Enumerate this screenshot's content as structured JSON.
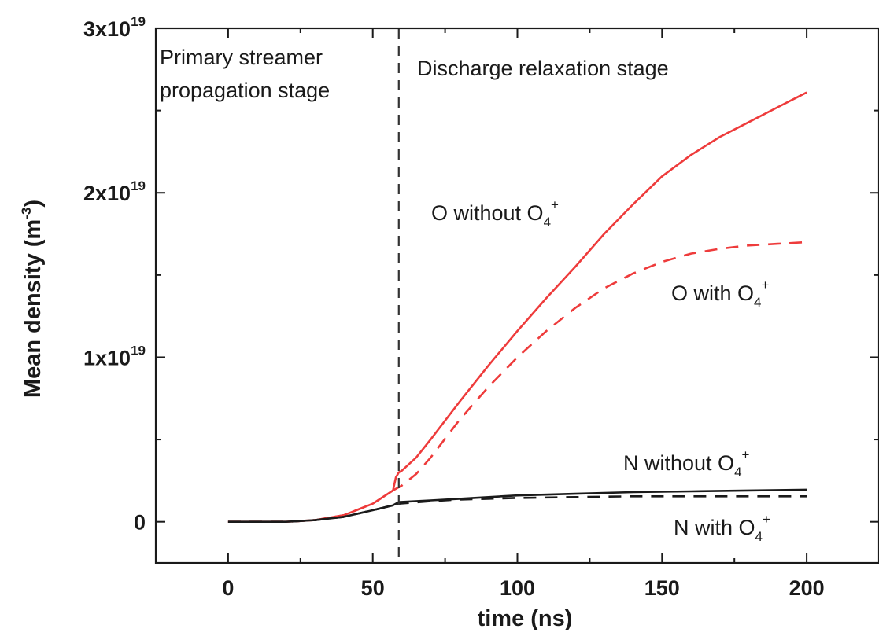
{
  "chart_data": {
    "type": "line",
    "xlabel": "time (ns)",
    "ylabel": "Mean density (m",
    "ylabel_exponent": "-3",
    "ylabel_close": ")",
    "xlim": [
      -25,
      225
    ],
    "ylim": [
      -2.5e+18,
      3e+19
    ],
    "x_ticks": [
      0,
      50,
      100,
      150,
      200
    ],
    "x_tick_labels": [
      "0",
      "50",
      "100",
      "150",
      "200"
    ],
    "y_ticks": [
      0,
      1e+19,
      2e+19,
      3e+19
    ],
    "y_tick_labels": [
      {
        "base": "0",
        "exp": ""
      },
      {
        "base": "1x10",
        "exp": "19"
      },
      {
        "base": "2x10",
        "exp": "19"
      },
      {
        "base": "3x10",
        "exp": "19"
      }
    ],
    "divider_x": 59,
    "stage_labels": [
      {
        "lines": [
          "Primary streamer",
          "propagation stage"
        ]
      },
      {
        "lines": [
          "Discharge relaxation stage"
        ]
      }
    ],
    "series": [
      {
        "name": "O without O4+",
        "label_parts": [
          "O without O",
          "4",
          "+"
        ],
        "color": "#ee3b3b",
        "dash": "solid",
        "points": [
          [
            0,
            0
          ],
          [
            10,
            0
          ],
          [
            20,
            0
          ],
          [
            30,
            1e+17
          ],
          [
            40,
            4e+17
          ],
          [
            50,
            1.1e+18
          ],
          [
            57,
            1.9e+18
          ],
          [
            58,
            2.7e+18
          ],
          [
            59,
            3e+18
          ],
          [
            60,
            3.1e+18
          ],
          [
            65,
            3.9e+18
          ],
          [
            70,
            5e+18
          ],
          [
            80,
            7.3e+18
          ],
          [
            90,
            9.5e+18
          ],
          [
            100,
            1.16e+19
          ],
          [
            110,
            1.36e+19
          ],
          [
            120,
            1.55e+19
          ],
          [
            130,
            1.75e+19
          ],
          [
            140,
            1.93e+19
          ],
          [
            150,
            2.1e+19
          ],
          [
            160,
            2.23e+19
          ],
          [
            170,
            2.34e+19
          ],
          [
            180,
            2.43e+19
          ],
          [
            190,
            2.52e+19
          ],
          [
            200,
            2.61e+19
          ]
        ]
      },
      {
        "name": "O with O4+",
        "label_parts": [
          "O with O",
          "4",
          "+"
        ],
        "color": "#ee3b3b",
        "dash": "dashed",
        "points": [
          [
            0,
            0
          ],
          [
            10,
            0
          ],
          [
            20,
            0
          ],
          [
            30,
            1e+17
          ],
          [
            40,
            4e+17
          ],
          [
            50,
            1.1e+18
          ],
          [
            57,
            1.9e+18
          ],
          [
            60,
            2.2e+18
          ],
          [
            65,
            2.9e+18
          ],
          [
            70,
            3.9e+18
          ],
          [
            80,
            6.2e+18
          ],
          [
            90,
            8.2e+18
          ],
          [
            100,
            1e+19
          ],
          [
            110,
            1.16e+19
          ],
          [
            120,
            1.3e+19
          ],
          [
            130,
            1.42e+19
          ],
          [
            140,
            1.51e+19
          ],
          [
            150,
            1.58e+19
          ],
          [
            160,
            1.63e+19
          ],
          [
            170,
            1.66e+19
          ],
          [
            180,
            1.68e+19
          ],
          [
            190,
            1.69e+19
          ],
          [
            200,
            1.7e+19
          ]
        ]
      },
      {
        "name": "N without O4+",
        "label_parts": [
          "N without O",
          "4",
          "+"
        ],
        "color": "#1a1a1a",
        "dash": "solid",
        "points": [
          [
            0,
            0
          ],
          [
            10,
            0
          ],
          [
            20,
            0
          ],
          [
            30,
            1e+17
          ],
          [
            40,
            3e+17
          ],
          [
            50,
            7e+17
          ],
          [
            57,
            1e+18
          ],
          [
            59,
            1.2e+18
          ],
          [
            70,
            1.3e+18
          ],
          [
            80,
            1.4e+18
          ],
          [
            100,
            1.6e+18
          ],
          [
            120,
            1.7e+18
          ],
          [
            140,
            1.8e+18
          ],
          [
            160,
            1.85e+18
          ],
          [
            180,
            1.9e+18
          ],
          [
            200,
            1.95e+18
          ]
        ]
      },
      {
        "name": "N with O4+",
        "label_parts": [
          "N with O",
          "4",
          "+"
        ],
        "color": "#1a1a1a",
        "dash": "dashed",
        "points": [
          [
            0,
            0
          ],
          [
            10,
            0
          ],
          [
            20,
            0
          ],
          [
            30,
            1e+17
          ],
          [
            40,
            3e+17
          ],
          [
            50,
            7e+17
          ],
          [
            57,
            1e+18
          ],
          [
            59,
            1.1e+18
          ],
          [
            70,
            1.25e+18
          ],
          [
            80,
            1.35e+18
          ],
          [
            100,
            1.45e+18
          ],
          [
            120,
            1.5e+18
          ],
          [
            140,
            1.55e+18
          ],
          [
            160,
            1.55e+18
          ],
          [
            180,
            1.55e+18
          ],
          [
            200,
            1.55e+18
          ]
        ]
      }
    ]
  }
}
